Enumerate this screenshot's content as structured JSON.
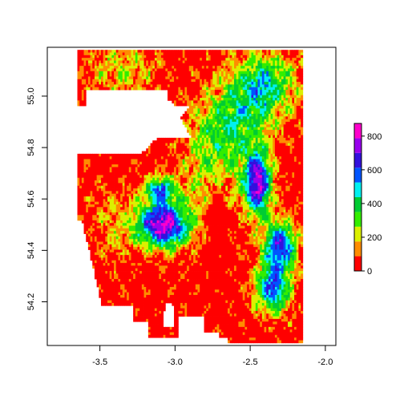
{
  "chart_data": {
    "type": "heatmap",
    "title": "",
    "xlabel": "",
    "ylabel": "",
    "xlim": [
      -3.85,
      -1.93
    ],
    "ylim": [
      54.03,
      55.19
    ],
    "x_ticks": [
      {
        "value": -3.5,
        "label": "-3.5"
      },
      {
        "value": -3.0,
        "label": "-3.0"
      },
      {
        "value": -2.5,
        "label": "-2.5"
      },
      {
        "value": -2.0,
        "label": "-2.0"
      }
    ],
    "y_ticks": [
      {
        "value": 54.2,
        "label": "54.2"
      },
      {
        "value": 54.4,
        "label": "54.4"
      },
      {
        "value": 54.6,
        "label": "54.6"
      },
      {
        "value": 54.8,
        "label": "54.8"
      },
      {
        "value": 55.0,
        "label": "55.0"
      }
    ],
    "raster_extent": {
      "xmin": -3.65,
      "xmax": -2.15,
      "ymin": 54.04,
      "ymax": 55.18
    },
    "legend": {
      "placement": "right",
      "zlim": [
        0,
        875
      ],
      "ticks": [
        {
          "value": 0,
          "label": "0"
        },
        {
          "value": 200,
          "label": "200"
        },
        {
          "value": 400,
          "label": "400"
        },
        {
          "value": 600,
          "label": "600"
        },
        {
          "value": 800,
          "label": "800"
        }
      ],
      "colors": [
        "#ff0000",
        "#ff8c00",
        "#dcf000",
        "#33ee00",
        "#00cc33",
        "#00f0f0",
        "#0055ff",
        "#3311dd",
        "#9900ee",
        "#ff00cc"
      ]
    }
  }
}
